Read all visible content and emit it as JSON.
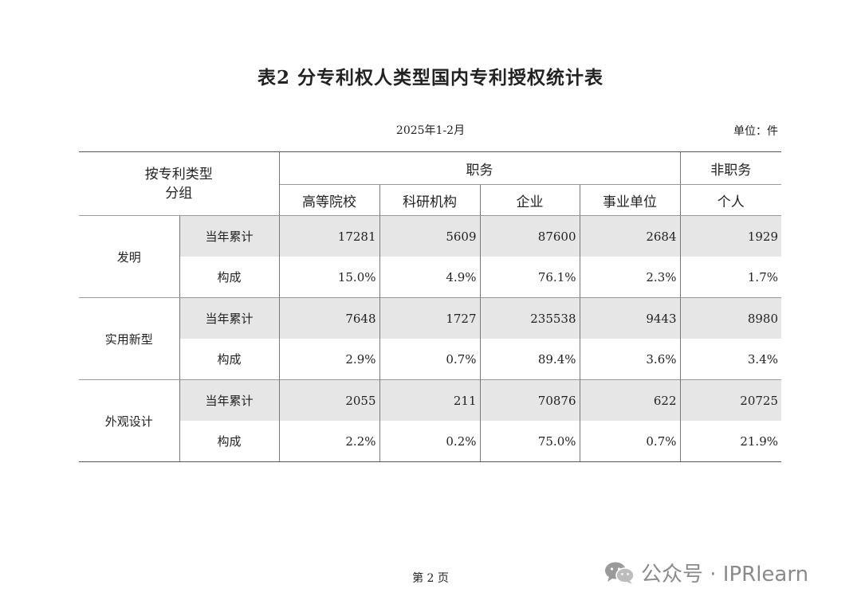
{
  "title": "表2  分专利权人类型国内专利授权统计表",
  "period": "2025年1-2月",
  "unit": "单位：件",
  "table": {
    "corner_line1": "按专利类型",
    "corner_line2": "分组",
    "group_service": "职务",
    "group_nonservice": "非职务",
    "columns": [
      "高等院校",
      "科研机构",
      "企业",
      "事业单位",
      "个人"
    ],
    "sections": [
      {
        "label": "发明",
        "rows": [
          {
            "label": "当年累计",
            "values": [
              "17281",
              "5609",
              "87600",
              "2684",
              "1929"
            ]
          },
          {
            "label": "构成",
            "values": [
              "15.0%",
              "4.9%",
              "76.1%",
              "2.3%",
              "1.7%"
            ]
          }
        ]
      },
      {
        "label": "实用新型",
        "rows": [
          {
            "label": "当年累计",
            "values": [
              "7648",
              "1727",
              "235538",
              "9443",
              "8980"
            ]
          },
          {
            "label": "构成",
            "values": [
              "2.9%",
              "0.7%",
              "89.4%",
              "3.6%",
              "3.4%"
            ]
          }
        ]
      },
      {
        "label": "外观设计",
        "rows": [
          {
            "label": "当年累计",
            "values": [
              "2055",
              "211",
              "70876",
              "622",
              "20725"
            ]
          },
          {
            "label": "构成",
            "values": [
              "2.2%",
              "0.2%",
              "75.0%",
              "0.7%",
              "21.9%"
            ]
          }
        ]
      }
    ]
  },
  "footer": "第 2 页",
  "watermark": {
    "text": "公众号 · IPRlearn",
    "icon": "wechat-icon"
  }
}
